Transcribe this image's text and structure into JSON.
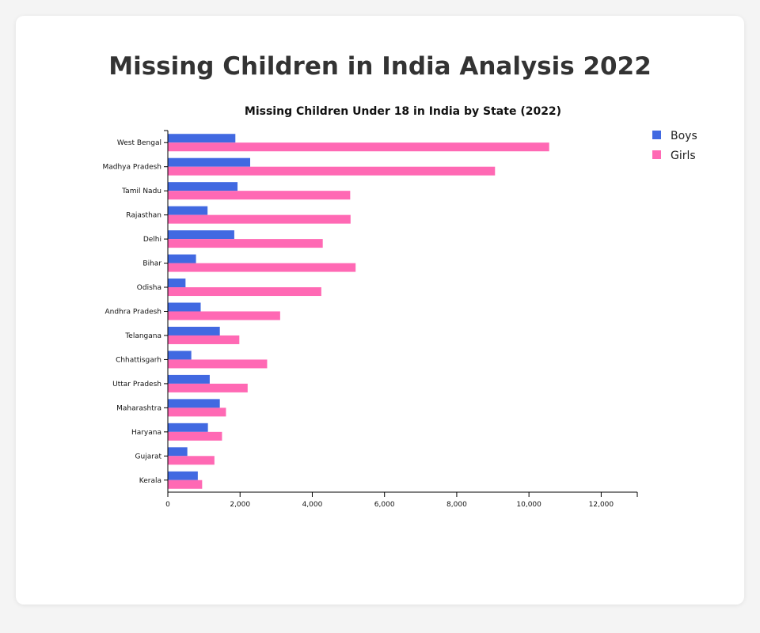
{
  "page": {
    "title": "Missing Children in India Analysis 2022"
  },
  "colors": {
    "boys": "#4169e1",
    "girls": "#ff69b4"
  },
  "chart_data": {
    "type": "bar",
    "orientation": "horizontal",
    "title": "Missing Children Under 18 in India by State (2022)",
    "xlabel": "",
    "ylabel": "",
    "xlim": [
      0,
      13000
    ],
    "x_ticks": [
      0,
      2000,
      4000,
      6000,
      8000,
      10000,
      12000
    ],
    "x_tick_labels": [
      "0",
      "2,000",
      "4,000",
      "6,000",
      "8,000",
      "10,000",
      "12,000"
    ],
    "grid": false,
    "legend_position": "top-right",
    "categories": [
      "West Bengal",
      "Madhya Pradesh",
      "Tamil Nadu",
      "Rajasthan",
      "Delhi",
      "Bihar",
      "Odisha",
      "Andhra Pradesh",
      "Telangana",
      "Chhattisgarh",
      "Uttar Pradesh",
      "Maharashtra",
      "Haryana",
      "Gujarat",
      "Kerala"
    ],
    "series": [
      {
        "name": "Boys",
        "color": "#4169e1",
        "values": [
          1870,
          2280,
          1930,
          1100,
          1840,
          780,
          490,
          910,
          1440,
          650,
          1160,
          1440,
          1110,
          540,
          830
        ]
      },
      {
        "name": "Girls",
        "color": "#ff69b4",
        "values": [
          10560,
          9060,
          5050,
          5060,
          4290,
          5200,
          4250,
          3110,
          1980,
          2750,
          2210,
          1610,
          1500,
          1290,
          950
        ]
      }
    ]
  }
}
